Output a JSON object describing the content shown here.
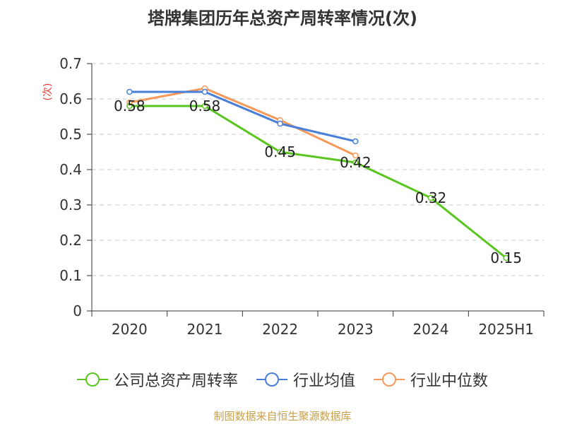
{
  "chart_data": {
    "type": "line",
    "title": "塔牌集团历年总资产周转率情况(次)",
    "ylabel": "(次)",
    "categories": [
      "2020",
      "2021",
      "2022",
      "2023",
      "2024",
      "2025H1"
    ],
    "ylim": [
      0,
      0.7
    ],
    "yticks": [
      0,
      0.1,
      0.2,
      0.3,
      0.4,
      0.5,
      0.6,
      0.7
    ],
    "ytick_labels": [
      "0",
      "0.1",
      "0.2",
      "0.3",
      "0.4",
      "0.5",
      "0.6",
      "0.7"
    ],
    "grid": true,
    "legend_position": "bottom",
    "series": [
      {
        "name": "公司总资产周转率",
        "color": "#5bc520",
        "values": [
          0.58,
          0.58,
          0.45,
          0.42,
          0.32,
          0.15
        ],
        "labels": [
          "0.58",
          "0.58",
          "0.45",
          "0.42",
          "0.32",
          "0.15"
        ]
      },
      {
        "name": "行业均值",
        "color": "#4a7fd9",
        "values": [
          0.62,
          0.62,
          0.53,
          0.48,
          null,
          null
        ]
      },
      {
        "name": "行业中位数",
        "color": "#f59a5b",
        "values": [
          0.59,
          0.63,
          0.54,
          0.44,
          null,
          null
        ]
      }
    ]
  },
  "footer": {
    "source": "制图数据来自恒生聚源数据库"
  }
}
